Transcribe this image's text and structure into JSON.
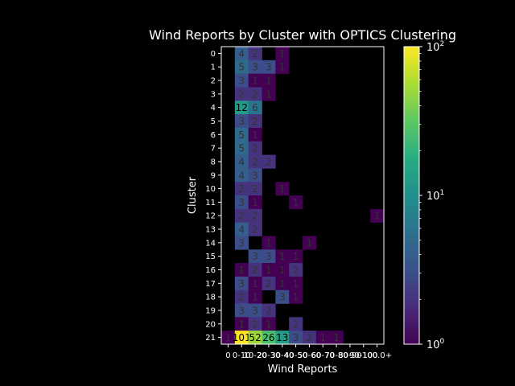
{
  "chart_data": {
    "type": "heatmap",
    "title": "Wind Reports by Cluster with OPTICS Clustering",
    "xlabel": "Wind Reports",
    "ylabel": "Cluster",
    "x_tick_labels": [
      "0",
      "0-10",
      "10-20",
      "20-30",
      "30-40",
      "40-50",
      "50-60",
      "60-70",
      "70-80",
      "80-90",
      "90-100",
      "100.0+"
    ],
    "y_tick_labels": [
      "0",
      "1",
      "2",
      "3",
      "4",
      "5",
      "6",
      "7",
      "8",
      "9",
      "10",
      "11",
      "12",
      "13",
      "14",
      "15",
      "16",
      "17",
      "18",
      "19",
      "20",
      "21"
    ],
    "color_scale": "log",
    "colorbar_range": [
      1,
      100
    ],
    "colorbar_tick_labels": [
      {
        "base": "10",
        "exp": "0"
      },
      {
        "base": "10",
        "exp": "1"
      },
      {
        "base": "10",
        "exp": "2"
      }
    ],
    "colormap": "viridis",
    "values": [
      [
        null,
        4,
        2,
        null,
        1,
        null,
        null,
        null,
        null,
        null,
        null,
        null
      ],
      [
        null,
        5,
        3,
        3,
        1,
        null,
        null,
        null,
        null,
        null,
        null,
        null
      ],
      [
        null,
        3,
        1,
        1,
        null,
        null,
        null,
        null,
        null,
        null,
        null,
        null
      ],
      [
        null,
        2,
        2,
        1,
        null,
        null,
        null,
        null,
        null,
        null,
        null,
        null
      ],
      [
        null,
        12,
        6,
        null,
        null,
        null,
        null,
        null,
        null,
        null,
        null,
        null
      ],
      [
        null,
        3,
        2,
        null,
        null,
        null,
        null,
        null,
        null,
        null,
        null,
        null
      ],
      [
        null,
        5,
        1,
        null,
        null,
        null,
        null,
        null,
        null,
        null,
        null,
        null
      ],
      [
        null,
        5,
        2,
        null,
        null,
        null,
        null,
        null,
        null,
        null,
        null,
        null
      ],
      [
        null,
        4,
        2,
        2,
        null,
        null,
        null,
        null,
        null,
        null,
        null,
        null
      ],
      [
        null,
        4,
        3,
        null,
        null,
        null,
        null,
        null,
        null,
        null,
        null,
        null
      ],
      [
        null,
        2,
        2,
        null,
        1,
        null,
        null,
        null,
        null,
        null,
        null,
        null
      ],
      [
        null,
        3,
        1,
        null,
        null,
        1,
        null,
        null,
        null,
        null,
        null,
        null
      ],
      [
        null,
        2,
        2,
        null,
        null,
        null,
        null,
        null,
        null,
        null,
        null,
        1
      ],
      [
        null,
        4,
        2,
        null,
        null,
        null,
        null,
        null,
        null,
        null,
        null,
        null
      ],
      [
        null,
        3,
        null,
        1,
        null,
        null,
        1,
        null,
        null,
        null,
        null,
        null
      ],
      [
        null,
        null,
        3,
        3,
        1,
        1,
        null,
        null,
        null,
        null,
        null,
        null
      ],
      [
        null,
        1,
        2,
        1,
        1,
        2,
        null,
        null,
        null,
        null,
        null,
        null
      ],
      [
        null,
        3,
        1,
        2,
        1,
        1,
        null,
        null,
        null,
        null,
        null,
        null
      ],
      [
        null,
        2,
        1,
        null,
        3,
        1,
        null,
        null,
        null,
        null,
        null,
        null
      ],
      [
        null,
        3,
        3,
        2,
        null,
        null,
        null,
        null,
        null,
        null,
        null,
        null
      ],
      [
        null,
        1,
        2,
        1,
        null,
        2,
        null,
        null,
        null,
        null,
        null,
        null
      ],
      [
        1,
        101,
        52,
        26,
        13,
        3,
        2,
        1,
        1,
        null,
        null,
        null
      ]
    ]
  }
}
